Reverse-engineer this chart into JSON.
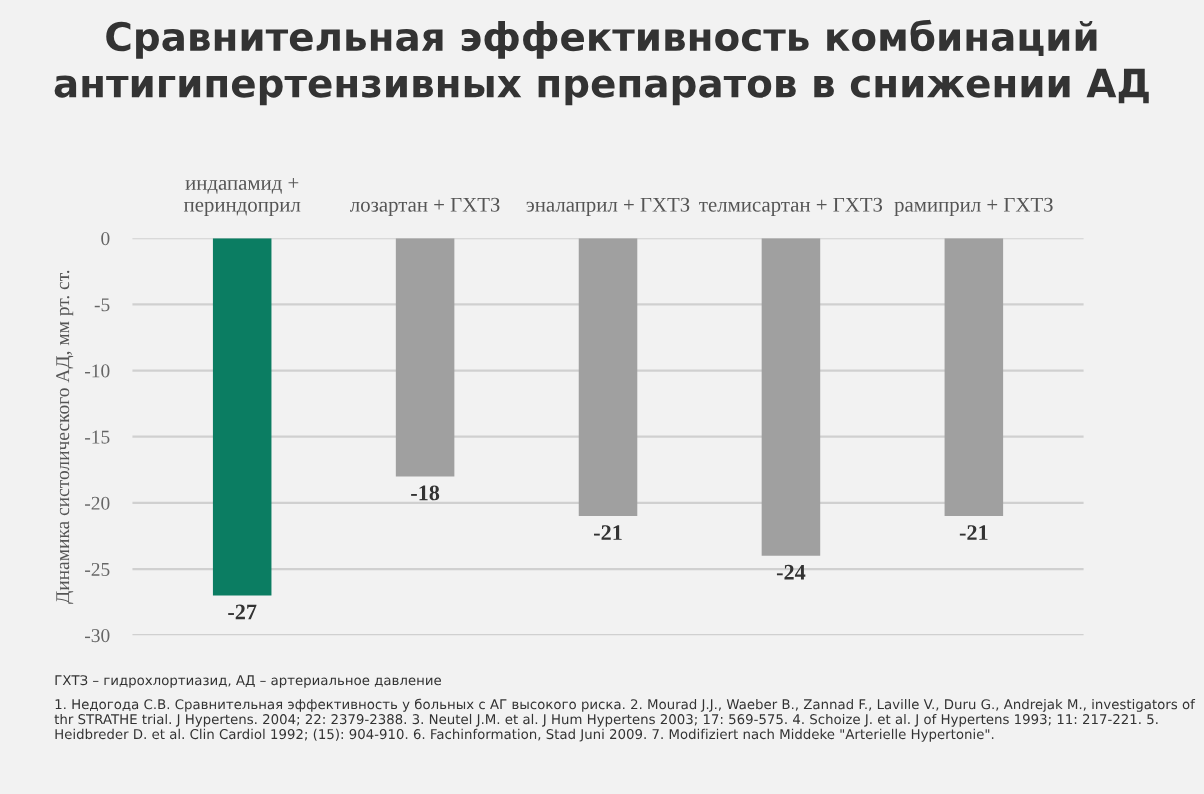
{
  "chart_data": {
    "type": "bar",
    "title": "Сравнительная эффективность комбинаций\nантигипертензивных препаратов в снижении АД",
    "categories": [
      "индапамид +\nпериндоприл",
      "лозартан + ГХТЗ",
      "эналаприл + ГХТЗ",
      "телмисартан + ГХТЗ",
      "рамиприл + ГХТЗ"
    ],
    "values": [
      -27,
      -18,
      -21,
      -24,
      -21
    ],
    "colors": [
      "#0b7d62",
      "#a0a0a0",
      "#a0a0a0",
      "#a0a0a0",
      "#a0a0a0"
    ],
    "ylabel": "Динамика систолического АД, мм рт. ст.",
    "ylim": [
      -30,
      0
    ],
    "yticks": [
      {
        "value": -30,
        "label": "-30"
      },
      {
        "value": -25,
        "label": "-25"
      },
      {
        "value": -20,
        "label": "-20"
      },
      {
        "value": -15,
        "label": "-15"
      },
      {
        "value": -10,
        "label": "-10"
      },
      {
        "value": -5,
        "label": "-5"
      },
      0
    ],
    "grid": "y",
    "data_labels": true,
    "annotations": [
      "ГХТЗ – гидрохлортиазид, АД – артериальное давление",
      "1. Недогода С.В. Сравнительная эффективность у больных с АГ высокого риска. 2. Mourad J.J., Waeber B., Zannad F., Laville V., Duru G., Andrejak M., investigators of thr STRATHE trial. J Hypertens. 2004; 22: 2379-2388. 3. Neutel J.M. et al. J Hum Hypertens 2003; 17: 569-575. 4. Schoize J. et al. J of Hypertens 1993; 11: 217-221. 5. Heidbreder D. et al. Clin Cardiol 1992; (15): 904-910. 6. Fachinformation, Stad Juni 2009. 7. Modifiziert nach Middeke \"Arterielle Hypertonie\"."
    ]
  }
}
